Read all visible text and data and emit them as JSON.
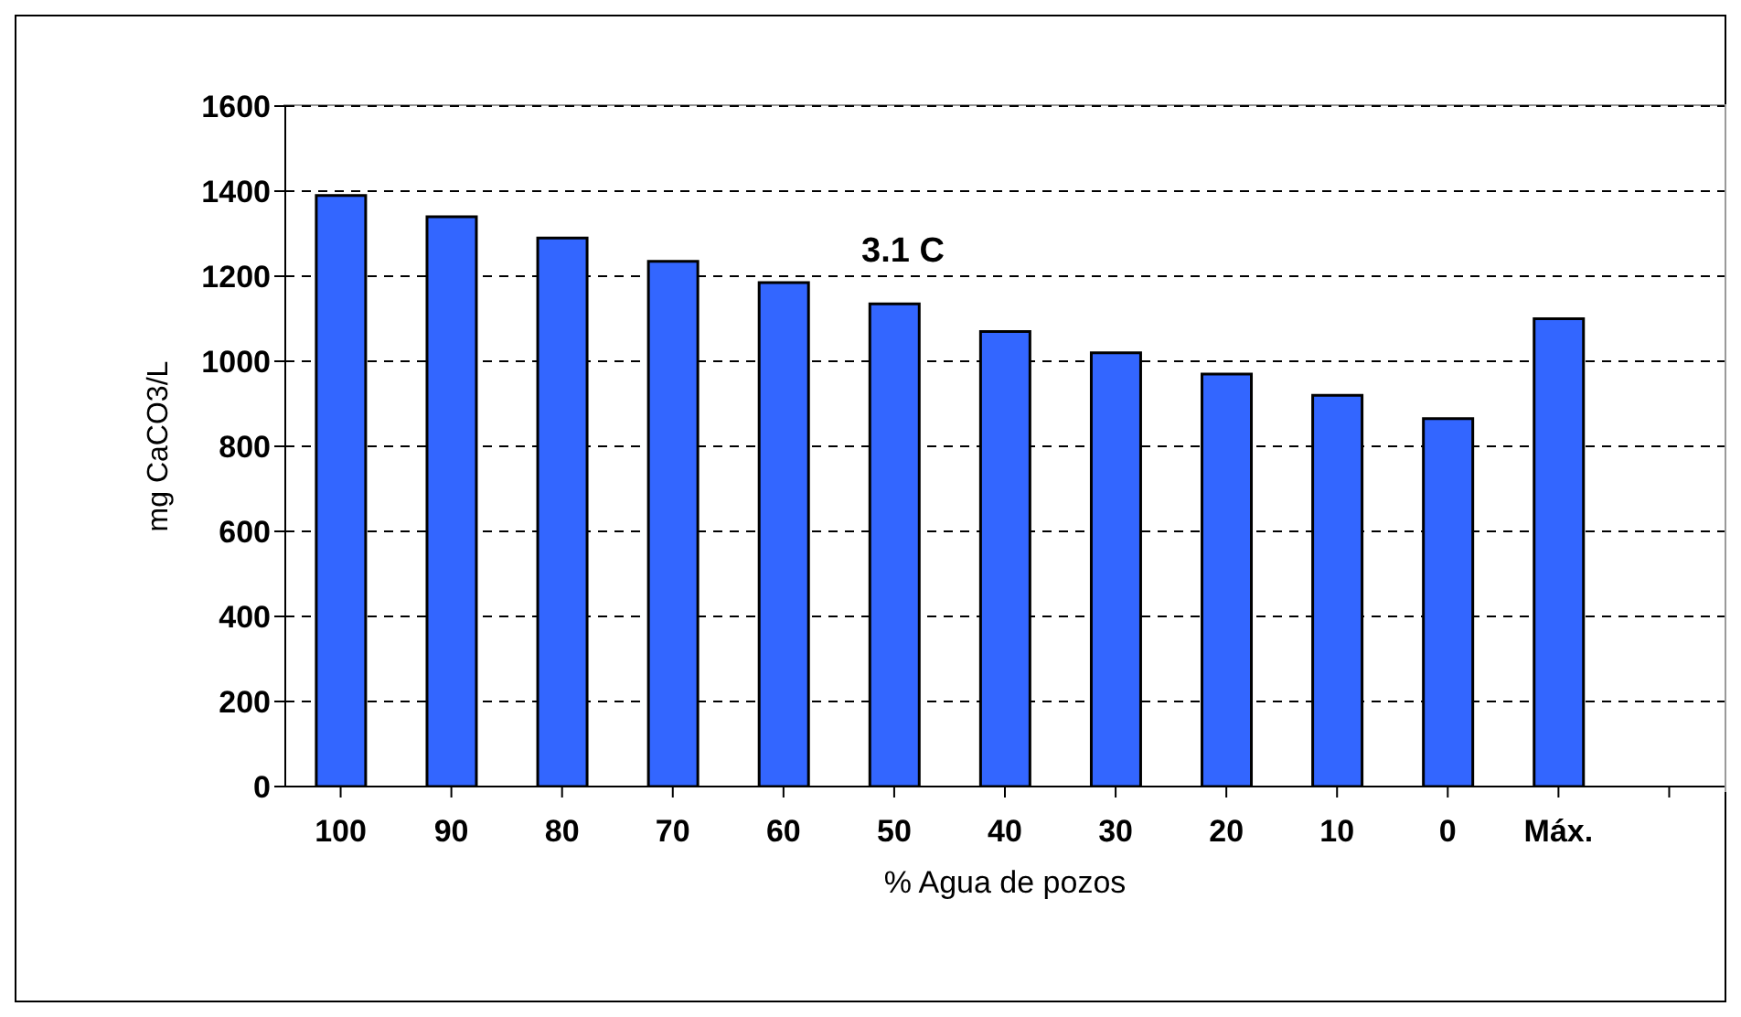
{
  "chart_data": {
    "type": "bar",
    "xlabel": "% Agua de pozos",
    "ylabel": "mg CaCO3/L",
    "categories": [
      "100",
      "90",
      "80",
      "70",
      "60",
      "50",
      "40",
      "30",
      "20",
      "10",
      "0",
      "Máx.",
      null
    ],
    "values": [
      1390,
      1340,
      1290,
      1235,
      1185,
      1135,
      1070,
      1020,
      970,
      920,
      865,
      1100,
      null
    ],
    "color": "#3366ff",
    "ylim": [
      0,
      1600
    ],
    "yticks": [
      0,
      200,
      400,
      600,
      800,
      1000,
      1200,
      1400,
      1600
    ],
    "grid": "y",
    "annotations": [
      "3.1 C"
    ]
  }
}
